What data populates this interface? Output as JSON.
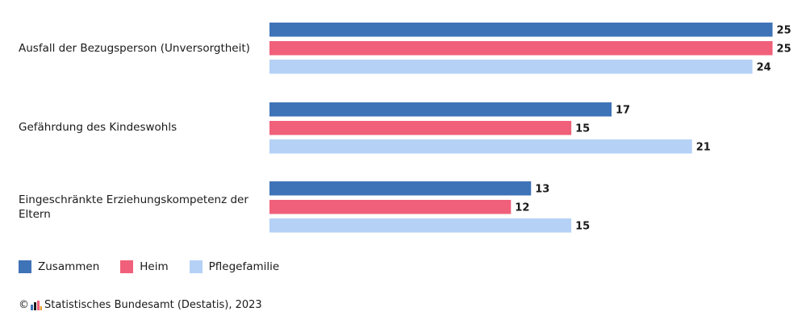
{
  "chart_data": {
    "type": "bar",
    "orientation": "horizontal",
    "categories": [
      "Ausfall der Bezugsperson (Unversorgtheit)",
      "Gefährdung des Kindeswohls",
      "Eingeschränkte Erziehungskompetenz der Eltern"
    ],
    "series": [
      {
        "name": "Zusammen",
        "color": "#3f73b8",
        "values": [
          25,
          17,
          13
        ]
      },
      {
        "name": "Heim",
        "color": "#f0607a",
        "values": [
          25,
          15,
          12
        ]
      },
      {
        "name": "Pflegefamilie",
        "color": "#b5d2f6",
        "values": [
          24,
          21,
          15
        ]
      }
    ],
    "xlim": [
      0,
      25.7
    ],
    "legend_position": "bottom-left",
    "grid": false
  },
  "source": {
    "copyright_symbol": "©",
    "text": "Statistisches Bundesamt (Destatis), 2023"
  }
}
